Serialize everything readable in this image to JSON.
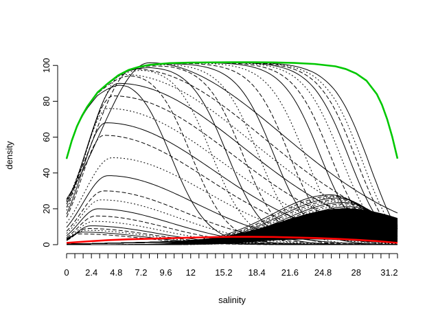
{
  "chart_data": {
    "type": "line",
    "title": "",
    "xlabel": "salinity",
    "ylabel": "density",
    "xlim": [
      0,
      32
    ],
    "ylim": [
      0,
      102
    ],
    "x_ticks": [
      "0",
      "2.4",
      "4.8",
      "7.2",
      "9.6",
      "12",
      "15.2",
      "18.4",
      "21.6",
      "24.8",
      "28",
      "31.2"
    ],
    "x_tick_values": [
      0,
      2.4,
      4.8,
      7.2,
      9.6,
      12,
      15.2,
      18.4,
      21.6,
      24.8,
      28,
      31.2
    ],
    "x_minor_tick_step": 0.8,
    "y_ticks": [
      "0",
      "20",
      "40",
      "60",
      "80",
      "100"
    ],
    "y_tick_values": [
      0,
      20,
      40,
      60,
      80,
      100
    ],
    "grid": false,
    "legend": "none",
    "highlight_series": [
      {
        "color": "#00c800",
        "line_width": 2,
        "x": [
          0,
          0.5,
          1,
          1.5,
          2,
          3,
          4,
          5,
          6,
          7,
          8,
          10,
          12,
          14,
          16,
          18,
          20,
          22,
          24,
          26,
          27,
          28,
          29,
          30,
          30.5,
          31,
          31.5,
          32
        ],
        "y": [
          48,
          58,
          66,
          72,
          77,
          85,
          90,
          94.5,
          97.5,
          99.2,
          100.3,
          101.3,
          101.6,
          101.7,
          101.8,
          101.8,
          101.7,
          101.4,
          100.8,
          99.5,
          98,
          95.5,
          91.5,
          84,
          78,
          70,
          60,
          48
        ]
      },
      {
        "color": "#ff0000",
        "line_width": 2,
        "x": [
          0,
          2,
          4,
          6,
          8,
          10,
          12,
          14,
          16,
          18,
          20,
          22,
          24,
          26,
          28,
          30,
          32
        ],
        "y": [
          1,
          1.8,
          2.5,
          3,
          3.3,
          3.6,
          3.9,
          4.2,
          4.4,
          4.4,
          4.3,
          4,
          3.7,
          3.3,
          2.7,
          2,
          1
        ]
      }
    ],
    "curve_families": [
      {
        "description_of_set": "dome-shaped curves with peak moving from low to high salinity",
        "count": 20,
        "color": "#000000",
        "peaks": [
          [
            8,
            101.5
          ],
          [
            6.5,
            98
          ],
          [
            5.5,
            95
          ],
          [
            5,
            90
          ],
          [
            4.5,
            83
          ],
          [
            4,
            76
          ],
          [
            3.8,
            68
          ],
          [
            3.6,
            61
          ],
          [
            4.4,
            48.5
          ],
          [
            4,
            38.5
          ],
          [
            3.6,
            30
          ],
          [
            3.3,
            25
          ],
          [
            3,
            20
          ],
          [
            2.8,
            16
          ],
          [
            2.6,
            13
          ],
          [
            2.3,
            10.5
          ],
          [
            2,
            9
          ],
          [
            1.8,
            8
          ],
          [
            1.5,
            7
          ],
          [
            1.2,
            6
          ]
        ]
      },
      {
        "description_of_set": "bell-shaped curves near high salinity",
        "count": 24,
        "color": "#000000",
        "peaks": [
          [
            25.5,
            27.8
          ],
          [
            25.8,
            27.2
          ],
          [
            26,
            26.6
          ],
          [
            26.2,
            26
          ],
          [
            26.4,
            25.2
          ],
          [
            26.6,
            24.4
          ],
          [
            26.8,
            23.6
          ],
          [
            27,
            22.8
          ],
          [
            27.2,
            22
          ],
          [
            27.4,
            21.2
          ],
          [
            27.6,
            20.4
          ],
          [
            27.8,
            19.6
          ],
          [
            28,
            18.8
          ],
          [
            28.1,
            18
          ],
          [
            28.2,
            17.2
          ],
          [
            28.3,
            16.4
          ],
          [
            28.4,
            15.6
          ],
          [
            28.5,
            14.8
          ],
          [
            28.6,
            14
          ],
          [
            28.7,
            13.2
          ],
          [
            28.8,
            12.4
          ],
          [
            28.9,
            11.6
          ],
          [
            29,
            10.8
          ],
          [
            29.2,
            10
          ]
        ]
      },
      {
        "description_of_set": "flat-topped curves that fall toward high salinity",
        "count": 16,
        "color": "#000000",
        "knees": [
          10,
          12,
          14,
          15.5,
          17,
          18.5,
          20,
          21.5,
          23,
          24.5,
          25.5,
          26.5,
          27.3,
          28,
          28.6,
          29.3
        ]
      }
    ]
  }
}
